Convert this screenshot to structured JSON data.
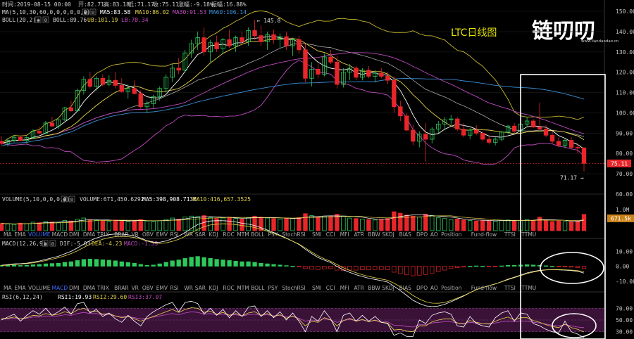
{
  "header": {
    "time": "时间:2019-08-15 00:00",
    "open": "开:82.71",
    "high": "高:83.18",
    "low": "低:71.17",
    "close": "收:75.11",
    "change": "涨幅:-9.18%",
    "amplitude": "振幅:16.88%"
  },
  "ma_line": {
    "label": "MA(5,10,30,60,0,0,0,0,0,0)",
    "ma5": "MA5:83.58",
    "ma10": "MA10:86.02",
    "ma30": "MA30:91.53",
    "ma60": "MA60:106.14"
  },
  "boll_line": {
    "label": "BOLL(20,2)",
    "boll": "BOLL:89.76",
    "ub": "UB:101.19",
    "lb": "LB:78.34"
  },
  "watermark": {
    "chart_title": "LTC日线图",
    "logo": "链叨叨",
    "site": "www.liandaodao.cn"
  },
  "annotations": {
    "high_mark": "← 145.8",
    "low_mark": "71.17 →",
    "current_price": "75.11"
  },
  "volume_header": {
    "label": "VOLUME(5,10,0,0,0,0)",
    "volume": "VOLUME:671,450.6292",
    "ma5": "MA5:398,908.7136",
    "ma10": "MA10:416,657.3525"
  },
  "volume_axis": {
    "tick": "1.0M",
    "current": "671.5k"
  },
  "macd_header": {
    "label": "MACD(12,26,9)",
    "dif": "DIF:-5.03",
    "dea": "DEA:-4.23",
    "macd": "MACD:-1.59"
  },
  "rsi_header": {
    "label": "RSI(6,12,24)",
    "rsi1": "RSI1:19.93",
    "rsi2": "RSI2:29.60",
    "rsi3": "RSI3:37.07"
  },
  "indicator_tabs": [
    "MA",
    "EMA",
    "VOLUME",
    "MACD",
    "DMI",
    "DMA",
    "TRIX",
    "BRAR",
    "VR",
    "OBV",
    "EMV",
    "RSI",
    "WR",
    "SAR",
    "KDJ",
    "ROC",
    "MTM",
    "BOLL",
    "PSY",
    "StochRSI",
    "SMI",
    "CCI",
    "MFI",
    "ATR",
    "BBW",
    "SKDJ",
    "BIAS",
    "DPO",
    "AO",
    "Position",
    "Fund-flow",
    "TTSI",
    "TTMU"
  ],
  "active_tabs": {
    "volume_row": "VOLUME",
    "macd_row": "MACD"
  },
  "colors": {
    "up": "#2ec95c",
    "down": "#e8262a",
    "ma5": "#ffffff",
    "ma10": "#e6d34a",
    "ma30": "#c04bc0",
    "ma60": "#3a8fd8",
    "boll_band": "#c9b92e",
    "highlight": "#ffffff",
    "rsi_band": "#4a1a4a"
  },
  "chart_data": [
    {
      "type": "candlestick",
      "title": "LTC日线图",
      "ylim": [
        60,
        150
      ],
      "y_ticks": [
        60,
        70,
        80,
        90,
        100,
        110,
        120,
        130,
        140,
        150
      ],
      "current_price": 75.11,
      "high_mark": 145.8,
      "low_mark": 71.17,
      "candles": [
        [
          86.0,
          88.5,
          84.0,
          85.0
        ],
        [
          85.0,
          87.5,
          83.5,
          86.5
        ],
        [
          86.5,
          89.0,
          85.5,
          88.0
        ],
        [
          88.0,
          89.0,
          86.0,
          86.5
        ],
        [
          86.5,
          88.5,
          85.0,
          87.8
        ],
        [
          87.8,
          92.0,
          87.0,
          91.0
        ],
        [
          91.0,
          93.0,
          89.5,
          90.0
        ],
        [
          90.0,
          96.0,
          89.5,
          95.0
        ],
        [
          95.0,
          98.0,
          93.0,
          93.5
        ],
        [
          93.5,
          97.0,
          92.0,
          96.5
        ],
        [
          96.5,
          103.0,
          96.0,
          102.5
        ],
        [
          102.5,
          106.0,
          100.5,
          101.0
        ],
        [
          101.0,
          112.0,
          100.5,
          111.0
        ],
        [
          111.0,
          118.0,
          109.0,
          116.5
        ],
        [
          116.5,
          120.0,
          112.0,
          113.0
        ],
        [
          113.0,
          118.0,
          111.0,
          117.0
        ],
        [
          117.0,
          119.0,
          113.0,
          114.0
        ],
        [
          114.0,
          118.5,
          113.0,
          116.0
        ],
        [
          116.0,
          120.0,
          112.0,
          113.5
        ],
        [
          113.5,
          117.0,
          110.0,
          110.5
        ],
        [
          110.5,
          114.0,
          107.0,
          112.0
        ],
        [
          112.0,
          116.0,
          109.0,
          109.5
        ],
        [
          109.5,
          111.0,
          102.0,
          103.0
        ],
        [
          103.0,
          106.0,
          100.0,
          104.5
        ],
        [
          104.5,
          109.0,
          102.5,
          108.0
        ],
        [
          108.0,
          113.0,
          106.0,
          112.0
        ],
        [
          112.0,
          119.0,
          110.0,
          117.5
        ],
        [
          117.5,
          124.0,
          115.0,
          122.0
        ],
        [
          122.0,
          127.0,
          119.0,
          121.0
        ],
        [
          121.0,
          131.0,
          120.0,
          129.5
        ],
        [
          129.5,
          136.0,
          127.0,
          134.0
        ],
        [
          134.0,
          140.0,
          131.0,
          137.0
        ],
        [
          137.0,
          142.0,
          128.0,
          130.0
        ],
        [
          130.0,
          136.0,
          125.0,
          134.5
        ],
        [
          134.5,
          138.0,
          130.0,
          131.5
        ],
        [
          131.5,
          137.0,
          129.0,
          136.0
        ],
        [
          136.0,
          141.0,
          132.0,
          133.0
        ],
        [
          133.0,
          138.0,
          130.0,
          137.0
        ],
        [
          137.0,
          140.0,
          134.0,
          135.0
        ],
        [
          135.0,
          142.0,
          133.0,
          140.5
        ],
        [
          140.5,
          145.8,
          136.0,
          138.0
        ],
        [
          138.0,
          143.0,
          133.0,
          135.0
        ],
        [
          135.0,
          140.0,
          131.0,
          138.5
        ],
        [
          138.5,
          141.0,
          134.0,
          136.0
        ],
        [
          136.0,
          139.0,
          132.0,
          137.5
        ],
        [
          137.5,
          140.0,
          131.0,
          133.0
        ],
        [
          133.0,
          137.0,
          128.0,
          136.0
        ],
        [
          136.0,
          138.0,
          129.0,
          131.0
        ],
        [
          131.0,
          134.0,
          115.0,
          117.0
        ],
        [
          117.0,
          125.0,
          113.0,
          121.5
        ],
        [
          121.5,
          124.0,
          117.0,
          119.0
        ],
        [
          119.0,
          129.0,
          118.0,
          127.5
        ],
        [
          127.5,
          131.0,
          124.0,
          125.0
        ],
        [
          125.0,
          128.0,
          112.0,
          114.0
        ],
        [
          114.0,
          122.0,
          112.5,
          120.0
        ],
        [
          120.0,
          124.0,
          116.0,
          122.0
        ],
        [
          122.0,
          123.0,
          116.0,
          117.5
        ],
        [
          117.5,
          122.0,
          116.0,
          121.0
        ],
        [
          121.0,
          123.0,
          117.0,
          118.0
        ],
        [
          118.0,
          121.0,
          115.0,
          119.5
        ],
        [
          119.5,
          122.0,
          117.0,
          118.0
        ],
        [
          118.0,
          120.0,
          114.0,
          116.0
        ],
        [
          116.0,
          118.0,
          100.0,
          103.0
        ],
        [
          103.0,
          106.0,
          96.0,
          98.5
        ],
        [
          98.5,
          100.0,
          91.0,
          91.5
        ],
        [
          91.5,
          94.0,
          84.0,
          86.0
        ],
        [
          86.0,
          91.0,
          83.0,
          89.5
        ],
        [
          89.5,
          95.0,
          76.0,
          87.0
        ],
        [
          87.0,
          93.0,
          85.0,
          92.0
        ],
        [
          92.0,
          96.0,
          90.0,
          94.5
        ],
        [
          94.5,
          98.0,
          92.0,
          96.5
        ],
        [
          96.5,
          99.0,
          94.0,
          97.0
        ],
        [
          97.0,
          98.0,
          91.0,
          92.0
        ],
        [
          92.0,
          95.0,
          88.0,
          89.0
        ],
        [
          89.0,
          92.5,
          87.0,
          91.5
        ],
        [
          91.5,
          94.0,
          89.0,
          90.0
        ],
        [
          90.0,
          91.0,
          86.0,
          87.0
        ],
        [
          87.0,
          89.0,
          84.5,
          85.5
        ],
        [
          85.5,
          88.0,
          84.0,
          87.0
        ],
        [
          87.0,
          91.0,
          86.0,
          90.5
        ],
        [
          90.5,
          94.0,
          89.5,
          93.5
        ],
        [
          93.5,
          95.0,
          90.0,
          91.0
        ],
        [
          91.0,
          95.0,
          90.0,
          94.5
        ],
        [
          94.5,
          98.0,
          93.0,
          96.0
        ],
        [
          96.0,
          97.0,
          92.5,
          93.0
        ],
        [
          93.0,
          105.0,
          91.5,
          92.0
        ],
        [
          92.0,
          94.0,
          88.0,
          89.0
        ],
        [
          89.0,
          91.0,
          85.0,
          86.0
        ],
        [
          86.0,
          88.0,
          83.0,
          84.0
        ],
        [
          84.0,
          87.0,
          82.5,
          86.5
        ],
        [
          86.5,
          88.0,
          82.0,
          83.0
        ],
        [
          83.0,
          85.0,
          80.0,
          82.71
        ],
        [
          82.71,
          83.18,
          71.17,
          75.11
        ]
      ],
      "volume": {
        "values": [
          300,
          280,
          260,
          310,
          290,
          350,
          330,
          380,
          360,
          340,
          420,
          400,
          480,
          520,
          450,
          430,
          410,
          390,
          440,
          400,
          380,
          420,
          460,
          400,
          380,
          410,
          470,
          520,
          480,
          560,
          600,
          580,
          620,
          540,
          500,
          520,
          560,
          500,
          480,
          530,
          600,
          560,
          520,
          500,
          480,
          520,
          500,
          540,
          700,
          620,
          560,
          600,
          580,
          680,
          600,
          520,
          500,
          480,
          460,
          440,
          470,
          500,
          780,
          720,
          640,
          600,
          560,
          680,
          620,
          540,
          500,
          460,
          480,
          440,
          420,
          400,
          430,
          410,
          390,
          420,
          440,
          400,
          420,
          460,
          430,
          560,
          420,
          380,
          400,
          370,
          360,
          390,
          671.45
        ],
        "ylim": [
          0,
          1100
        ]
      },
      "macd": {
        "hist": [
          0.5,
          0.6,
          0.7,
          0.5,
          0.6,
          1.0,
          1.2,
          1.6,
          1.8,
          2.0,
          2.6,
          3.0,
          3.8,
          4.5,
          4.8,
          4.6,
          4.3,
          4.0,
          3.6,
          3.0,
          2.5,
          2.0,
          1.2,
          0.6,
          0.8,
          1.6,
          2.6,
          3.6,
          4.2,
          5.2,
          6.0,
          6.5,
          5.8,
          5.3,
          4.6,
          4.2,
          3.8,
          3.4,
          3.0,
          3.0,
          2.6,
          2.0,
          1.6,
          1.2,
          0.8,
          0.4,
          0.0,
          -0.4,
          -1.6,
          -2.0,
          -2.2,
          -1.8,
          -1.6,
          -2.6,
          -2.8,
          -2.6,
          -2.6,
          -2.4,
          -2.4,
          -2.2,
          -2.2,
          -2.4,
          -4.0,
          -5.0,
          -5.8,
          -6.4,
          -6.0,
          -5.6,
          -4.6,
          -3.6,
          -2.6,
          -1.6,
          -1.0,
          -0.6,
          0.0,
          0.2,
          0.0,
          -0.2,
          -0.2,
          0.2,
          0.6,
          0.6,
          0.8,
          1.0,
          0.8,
          0.6,
          0.3,
          0.0,
          -0.3,
          -0.5,
          -0.6,
          -0.9,
          -1.59
        ],
        "ylim": [
          -12,
          12
        ],
        "y_ticks": [
          10,
          0,
          -10
        ]
      },
      "rsi": {
        "rsi1": [
          50,
          55,
          60,
          48,
          58,
          66,
          60,
          70,
          58,
          64,
          72,
          60,
          78,
          80,
          62,
          68,
          56,
          62,
          52,
          46,
          58,
          48,
          40,
          56,
          64,
          70,
          76,
          80,
          64,
          80,
          82,
          78,
          60,
          70,
          58,
          68,
          54,
          66,
          56,
          72,
          74,
          56,
          66,
          54,
          64,
          50,
          62,
          48,
          30,
          56,
          48,
          66,
          52,
          30,
          58,
          62,
          48,
          58,
          48,
          56,
          46,
          44,
          24,
          28,
          22,
          22,
          50,
          44,
          58,
          62,
          64,
          60,
          40,
          38,
          56,
          44,
          40,
          38,
          54,
          62,
          66,
          48,
          62,
          60,
          44,
          40,
          34,
          30,
          28,
          48,
          30,
          26,
          19.93
        ],
        "rsi2": [
          52,
          53,
          55,
          52,
          54,
          58,
          57,
          61,
          58,
          60,
          64,
          61,
          67,
          70,
          64,
          65,
          60,
          61,
          57,
          54,
          56,
          52,
          48,
          52,
          56,
          60,
          64,
          68,
          63,
          68,
          71,
          70,
          63,
          65,
          60,
          63,
          58,
          61,
          57,
          62,
          64,
          58,
          61,
          56,
          59,
          53,
          57,
          51,
          40,
          48,
          46,
          54,
          50,
          40,
          49,
          53,
          48,
          51,
          47,
          50,
          46,
          45,
          33,
          34,
          31,
          30,
          40,
          40,
          47,
          50,
          52,
          52,
          45,
          43,
          49,
          46,
          44,
          43,
          48,
          52,
          55,
          50,
          54,
          54,
          49,
          46,
          42,
          39,
          37,
          43,
          37,
          34,
          29.6
        ],
        "rsi3": [
          52,
          52,
          53,
          52,
          53,
          55,
          55,
          57,
          56,
          57,
          59,
          58,
          61,
          63,
          61,
          61,
          59,
          59,
          57,
          56,
          56,
          54,
          52,
          53,
          55,
          57,
          59,
          61,
          59,
          62,
          64,
          63,
          60,
          61,
          59,
          60,
          58,
          59,
          57,
          59,
          60,
          58,
          59,
          57,
          58,
          55,
          56,
          53,
          48,
          50,
          49,
          52,
          50,
          46,
          49,
          51,
          49,
          50,
          48,
          49,
          47,
          47,
          41,
          41,
          39,
          38,
          42,
          42,
          45,
          46,
          47,
          47,
          45,
          44,
          46,
          45,
          44,
          44,
          45,
          47,
          48,
          47,
          48,
          48,
          46,
          45,
          43,
          41,
          40,
          42,
          40,
          38,
          37.07
        ],
        "ylim": [
          20,
          80
        ],
        "y_ticks": [
          70,
          50,
          30
        ]
      }
    }
  ]
}
